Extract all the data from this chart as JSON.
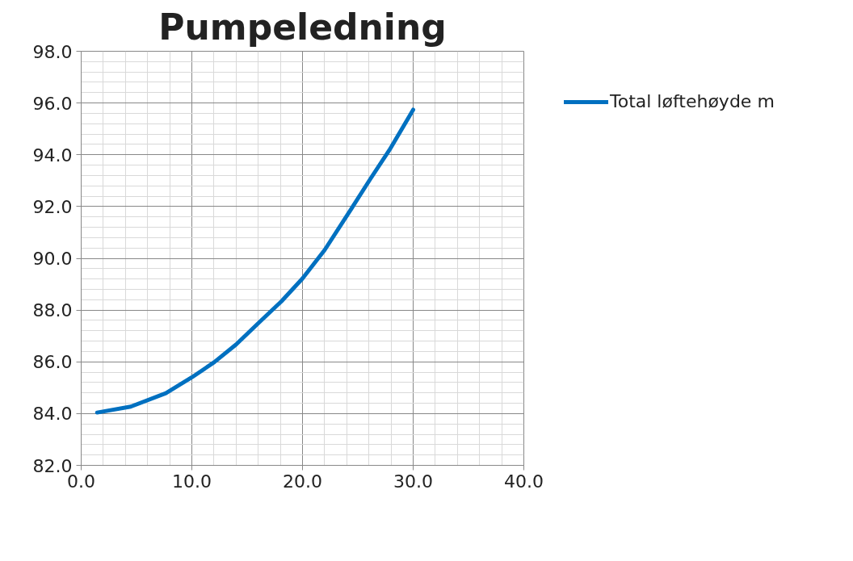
{
  "chart_data": {
    "type": "line",
    "title": "Pumpeledning",
    "x": [
      1.44,
      4.48,
      7.65,
      10.0,
      12.03,
      14.0,
      16.17,
      18.1,
      20.0,
      22.0,
      24.45,
      26.15,
      27.85,
      30.0
    ],
    "series": [
      {
        "name": "Total løftehøyde m",
        "color": "#0070c0",
        "values": [
          84.04,
          84.27,
          84.79,
          85.4,
          85.99,
          86.67,
          87.56,
          88.34,
          89.22,
          90.32,
          91.94,
          93.08,
          94.18,
          95.74
        ]
      }
    ],
    "xlim": [
      0,
      40
    ],
    "xticks": [
      {
        "value": 0,
        "label": "0.0"
      },
      {
        "value": 10,
        "label": "10.0"
      },
      {
        "value": 20,
        "label": "20.0"
      },
      {
        "value": 30,
        "label": "30.0"
      },
      {
        "value": 40,
        "label": "40.0"
      }
    ],
    "ylim": [
      82,
      98
    ],
    "yticks": [
      {
        "value": 82,
        "label": "82.0"
      },
      {
        "value": 84,
        "label": "84.0"
      },
      {
        "value": 86,
        "label": "86.0"
      },
      {
        "value": 88,
        "label": "88.0"
      },
      {
        "value": 90,
        "label": "90.0"
      },
      {
        "value": 92,
        "label": "92.0"
      },
      {
        "value": 94,
        "label": "94.0"
      },
      {
        "value": 96,
        "label": "96.0"
      },
      {
        "value": 98,
        "label": "98.0"
      }
    ],
    "grid": true,
    "legend": "right",
    "marker": "none",
    "line_style": "solid"
  }
}
